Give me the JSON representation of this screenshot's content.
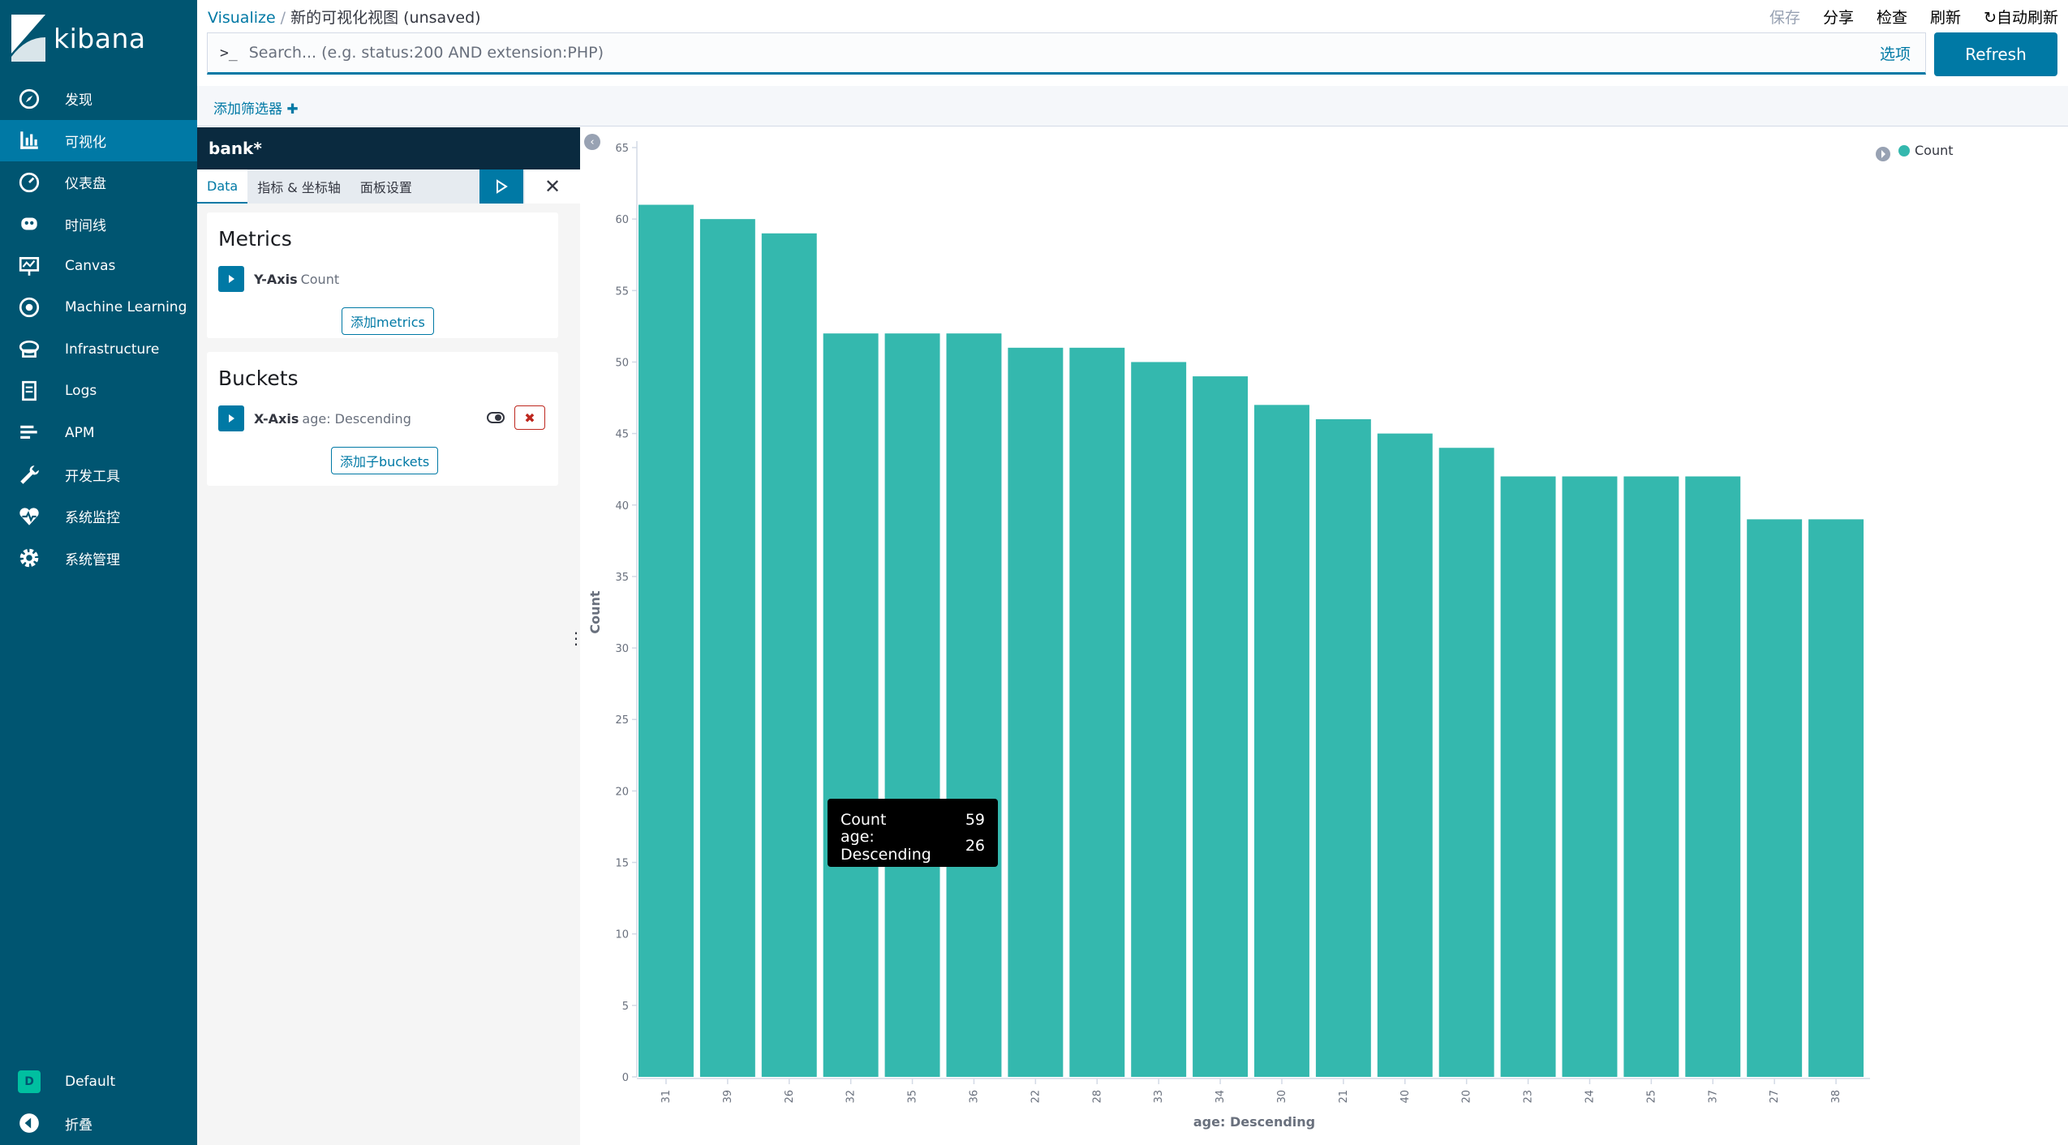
{
  "app": {
    "brand": "kibana",
    "accent": "#005571",
    "active_color": "#0079a5"
  },
  "sidebar": {
    "items": [
      {
        "label": "发现",
        "icon": "compass-icon"
      },
      {
        "label": "可视化",
        "icon": "bar-chart-icon",
        "active": true
      },
      {
        "label": "仪表盘",
        "icon": "dashboard-icon"
      },
      {
        "label": "时间线",
        "icon": "timeline-icon"
      },
      {
        "label": "Canvas",
        "icon": "canvas-icon"
      },
      {
        "label": "Machine Learning",
        "icon": "machine-learning-icon"
      },
      {
        "label": "Infrastructure",
        "icon": "infrastructure-icon"
      },
      {
        "label": "Logs",
        "icon": "logs-icon"
      },
      {
        "label": "APM",
        "icon": "apm-icon"
      },
      {
        "label": "开发工具",
        "icon": "wrench-icon"
      },
      {
        "label": "系统监控",
        "icon": "heartbeat-icon"
      },
      {
        "label": "系统管理",
        "icon": "gear-icon"
      }
    ],
    "space": {
      "badge": "D",
      "label": "Default"
    },
    "collapse_label": "折叠"
  },
  "header": {
    "breadcrumb_root": "Visualize",
    "breadcrumb_sep": "/",
    "title": "新的可视化视图 (unsaved)",
    "actions": {
      "save": "保存",
      "share": "分享",
      "inspect": "检查",
      "refresh": "刷新",
      "auto_refresh": "自动刷新"
    }
  },
  "search": {
    "prompt": ">_",
    "placeholder": "Search... (e.g. status:200 AND extension:PHP)",
    "options_label": "选项",
    "refresh_button": "Refresh"
  },
  "filters": {
    "add_filter_label": "添加筛选器"
  },
  "editor": {
    "index_pattern": "bank*",
    "tabs": [
      "Data",
      "指标 & 坐标轴",
      "面板设置"
    ],
    "metrics": {
      "title": "Metrics",
      "axis_label": "Y-Axis",
      "agg_label": "Count",
      "add_button": "添加metrics"
    },
    "buckets": {
      "title": "Buckets",
      "axis_label": "X-Axis",
      "agg_label": "age: Descending",
      "add_button": "添加子buckets"
    }
  },
  "chart_data": {
    "type": "bar",
    "categories": [
      "31",
      "39",
      "26",
      "32",
      "35",
      "36",
      "22",
      "28",
      "33",
      "34",
      "30",
      "21",
      "40",
      "20",
      "23",
      "24",
      "25",
      "37",
      "27",
      "38"
    ],
    "series": [
      {
        "name": "Count",
        "values": [
          61,
          60,
          59,
          52,
          52,
          52,
          51,
          51,
          50,
          49,
          47,
          46,
          45,
          44,
          42,
          42,
          42,
          42,
          39,
          39
        ],
        "color": "#34b8ae"
      }
    ],
    "xlabel": "age: Descending",
    "ylabel": "Count",
    "ylim": [
      0,
      65
    ],
    "yticks": [
      0,
      5,
      10,
      15,
      20,
      25,
      30,
      35,
      40,
      45,
      50,
      55,
      60,
      65
    ],
    "legend": {
      "position": "top-right"
    },
    "grid": false
  },
  "tooltip": {
    "row1_label": "Count",
    "row1_value": "59",
    "row2_label": "age: Descending",
    "row2_value": "26"
  }
}
